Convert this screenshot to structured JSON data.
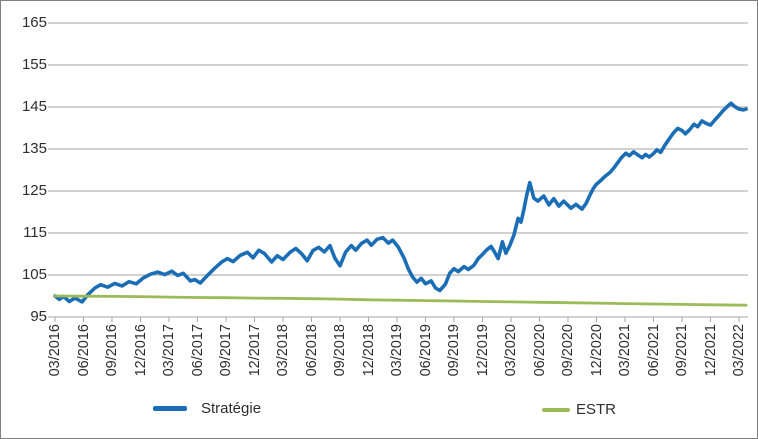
{
  "chart_data": {
    "type": "line",
    "xlabel": "",
    "ylabel": "",
    "ylim": [
      95,
      165
    ],
    "xlim_quarters": [
      0,
      24.25
    ],
    "grid": true,
    "grid_color": "#a6a6a6",
    "axis_color": "#a6a6a6",
    "legend_position": "bottom",
    "y_ticks": [
      165,
      155,
      145,
      135,
      125,
      115,
      105,
      95
    ],
    "x_tick_labels": [
      "03/2016",
      "06/2016",
      "09/2016",
      "12/2016",
      "03/2017",
      "06/2017",
      "09/2017",
      "12/2017",
      "03/2018",
      "06/2018",
      "09/2018",
      "12/2018",
      "03/2019",
      "06/2019",
      "09/2019",
      "12/2019",
      "03/2020",
      "06/2020",
      "09/2020",
      "12/2020",
      "03/2021",
      "06/2021",
      "09/2021",
      "12/2021",
      "03/2022"
    ],
    "series": [
      {
        "name": "Stratégie",
        "color": "#1b6eb5",
        "stroke_width": 3.6,
        "points": [
          [
            0,
            100.0
          ],
          [
            0.15,
            99.2
          ],
          [
            0.3,
            99.9
          ],
          [
            0.5,
            98.7
          ],
          [
            0.7,
            99.5
          ],
          [
            0.95,
            98.6
          ],
          [
            1.15,
            100.3
          ],
          [
            1.4,
            101.9
          ],
          [
            1.6,
            102.7
          ],
          [
            1.85,
            102.1
          ],
          [
            2.1,
            103.0
          ],
          [
            2.35,
            102.4
          ],
          [
            2.6,
            103.4
          ],
          [
            2.85,
            102.9
          ],
          [
            3.1,
            104.3
          ],
          [
            3.35,
            105.2
          ],
          [
            3.6,
            105.7
          ],
          [
            3.85,
            105.1
          ],
          [
            4.1,
            105.9
          ],
          [
            4.3,
            104.9
          ],
          [
            4.5,
            105.4
          ],
          [
            4.75,
            103.6
          ],
          [
            4.9,
            103.9
          ],
          [
            5.1,
            103.1
          ],
          [
            5.35,
            104.9
          ],
          [
            5.6,
            106.6
          ],
          [
            5.85,
            108.1
          ],
          [
            6.05,
            108.9
          ],
          [
            6.25,
            108.2
          ],
          [
            6.5,
            109.7
          ],
          [
            6.75,
            110.4
          ],
          [
            6.95,
            109.1
          ],
          [
            7.15,
            110.9
          ],
          [
            7.35,
            110.1
          ],
          [
            7.6,
            108.1
          ],
          [
            7.8,
            109.6
          ],
          [
            8.0,
            108.7
          ],
          [
            8.25,
            110.4
          ],
          [
            8.45,
            111.3
          ],
          [
            8.65,
            110.1
          ],
          [
            8.85,
            108.4
          ],
          [
            9.05,
            110.8
          ],
          [
            9.25,
            111.6
          ],
          [
            9.45,
            110.5
          ],
          [
            9.65,
            112.0
          ],
          [
            9.82,
            109.0
          ],
          [
            10.0,
            107.2
          ],
          [
            10.2,
            110.5
          ],
          [
            10.4,
            112.0
          ],
          [
            10.55,
            110.9
          ],
          [
            10.75,
            112.5
          ],
          [
            10.95,
            113.3
          ],
          [
            11.1,
            112.1
          ],
          [
            11.3,
            113.5
          ],
          [
            11.5,
            113.9
          ],
          [
            11.7,
            112.6
          ],
          [
            11.85,
            113.3
          ],
          [
            12.05,
            111.6
          ],
          [
            12.25,
            109.0
          ],
          [
            12.4,
            106.4
          ],
          [
            12.55,
            104.5
          ],
          [
            12.7,
            103.3
          ],
          [
            12.85,
            104.2
          ],
          [
            13.0,
            102.9
          ],
          [
            13.2,
            103.6
          ],
          [
            13.35,
            101.9
          ],
          [
            13.5,
            101.3
          ],
          [
            13.7,
            102.8
          ],
          [
            13.85,
            105.4
          ],
          [
            14.0,
            106.5
          ],
          [
            14.15,
            105.8
          ],
          [
            14.35,
            107.0
          ],
          [
            14.5,
            106.3
          ],
          [
            14.7,
            107.3
          ],
          [
            14.85,
            108.9
          ],
          [
            15.0,
            109.9
          ],
          [
            15.15,
            111.0
          ],
          [
            15.3,
            111.8
          ],
          [
            15.42,
            110.5
          ],
          [
            15.55,
            108.9
          ],
          [
            15.7,
            112.9
          ],
          [
            15.82,
            110.2
          ],
          [
            15.95,
            111.9
          ],
          [
            16.1,
            114.5
          ],
          [
            16.25,
            118.5
          ],
          [
            16.35,
            117.6
          ],
          [
            16.45,
            120.5
          ],
          [
            16.55,
            124.0
          ],
          [
            16.66,
            127.0
          ],
          [
            16.8,
            123.3
          ],
          [
            16.94,
            122.6
          ],
          [
            17.15,
            123.8
          ],
          [
            17.33,
            121.7
          ],
          [
            17.5,
            123.2
          ],
          [
            17.68,
            121.4
          ],
          [
            17.85,
            122.6
          ],
          [
            18.1,
            120.9
          ],
          [
            18.28,
            121.8
          ],
          [
            18.49,
            120.7
          ],
          [
            18.63,
            122.0
          ],
          [
            18.77,
            124.0
          ],
          [
            18.88,
            125.5
          ],
          [
            18.98,
            126.5
          ],
          [
            19.12,
            127.3
          ],
          [
            19.3,
            128.5
          ],
          [
            19.47,
            129.4
          ],
          [
            19.61,
            130.5
          ],
          [
            19.75,
            131.8
          ],
          [
            19.88,
            133.0
          ],
          [
            20.03,
            134.0
          ],
          [
            20.15,
            133.4
          ],
          [
            20.3,
            134.3
          ],
          [
            20.45,
            133.6
          ],
          [
            20.6,
            132.9
          ],
          [
            20.72,
            133.7
          ],
          [
            20.85,
            133.1
          ],
          [
            21.0,
            133.9
          ],
          [
            21.12,
            134.8
          ],
          [
            21.25,
            134.2
          ],
          [
            21.4,
            135.9
          ],
          [
            21.55,
            137.4
          ],
          [
            21.7,
            138.8
          ],
          [
            21.85,
            139.9
          ],
          [
            22.0,
            139.4
          ],
          [
            22.12,
            138.6
          ],
          [
            22.28,
            139.7
          ],
          [
            22.42,
            140.9
          ],
          [
            22.55,
            140.3
          ],
          [
            22.7,
            141.7
          ],
          [
            22.85,
            141.1
          ],
          [
            23.0,
            140.7
          ],
          [
            23.15,
            141.9
          ],
          [
            23.3,
            143.0
          ],
          [
            23.45,
            144.2
          ],
          [
            23.6,
            145.2
          ],
          [
            23.72,
            145.9
          ],
          [
            23.85,
            145.1
          ],
          [
            24.0,
            144.5
          ],
          [
            24.15,
            144.3
          ],
          [
            24.25,
            144.5
          ]
        ]
      },
      {
        "name": "ESTR",
        "color": "#9bbb59",
        "stroke_width": 2.8,
        "points": [
          [
            0,
            100.0
          ],
          [
            1,
            99.95
          ],
          [
            2,
            99.9
          ],
          [
            3,
            99.85
          ],
          [
            4,
            99.75
          ],
          [
            5,
            99.65
          ],
          [
            6,
            99.6
          ],
          [
            7,
            99.5
          ],
          [
            8,
            99.45
          ],
          [
            9,
            99.35
          ],
          [
            10,
            99.25
          ],
          [
            11,
            99.1
          ],
          [
            12,
            99.0
          ],
          [
            13,
            98.9
          ],
          [
            14,
            98.8
          ],
          [
            15,
            98.7
          ],
          [
            16,
            98.6
          ],
          [
            17,
            98.5
          ],
          [
            18,
            98.4
          ],
          [
            19,
            98.3
          ],
          [
            20,
            98.2
          ],
          [
            21,
            98.1
          ],
          [
            22,
            98.0
          ],
          [
            23,
            97.9
          ],
          [
            24.25,
            97.8
          ]
        ]
      }
    ]
  }
}
